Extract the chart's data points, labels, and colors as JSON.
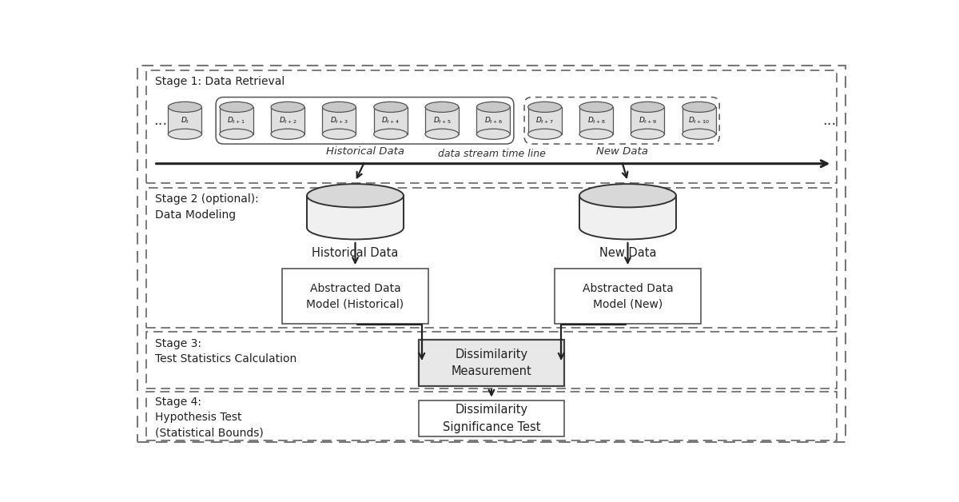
{
  "bg_color": "#ffffff",
  "stage1_label": "Stage 1: Data Retrieval",
  "stage2_label": "Stage 2 (optional):\nData Modeling",
  "stage3_label": "Stage 3:\nTest Statistics Calculation",
  "stage4_label": "Stage 4:\nHypothesis Test\n(Statistical Bounds)",
  "timeline_label": "data stream time line",
  "hist_bracket_label": "Historical Data",
  "new_bracket_label": "New Data",
  "hist_db_label": "Historical Data",
  "new_db_label": "New Data",
  "hist_model_label": "Abstracted Data\nModel (Historical)",
  "new_model_label": "Abstracted Data\nModel (New)",
  "dissimilarity_label": "Dissimilarity\nMeasurement",
  "significance_label": "Dissimilarity\nSignificance Test",
  "cyl_texts": [
    "$D_t$",
    "$D_{t+1}$",
    "$D_{t+2}$",
    "$D_{t+3}$",
    "$D_{t+4}$",
    "$D_{t+5}$",
    "$D_{t+6}$",
    "$D_{t+7}$",
    "$D_{t+8}$",
    "$D_{t+9}$",
    "$D_{t+10}$"
  ],
  "line_color": "#222222",
  "box_edge_color": "#555555",
  "dm_box_color": "#cccccc"
}
